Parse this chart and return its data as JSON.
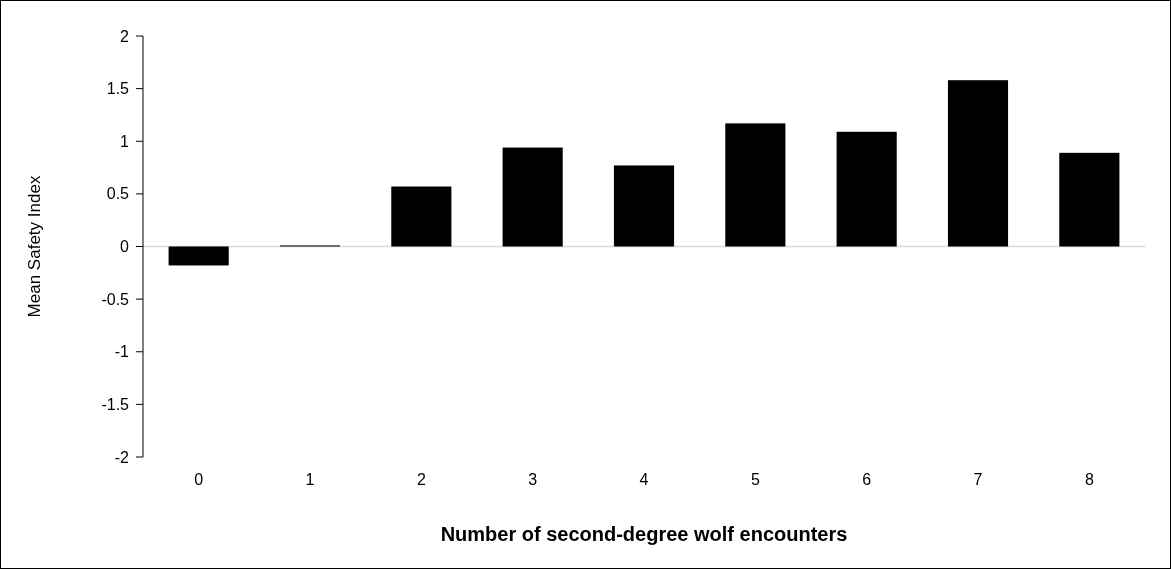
{
  "chart_data": {
    "type": "bar",
    "xlabel": "Number of second-degree wolf encounters",
    "ylabel": "Mean Safety Index",
    "categories": [
      "0",
      "1",
      "2",
      "3",
      "4",
      "5",
      "6",
      "7",
      "8"
    ],
    "values": [
      -0.18,
      0.01,
      0.57,
      0.94,
      0.77,
      1.17,
      1.09,
      1.58,
      0.89
    ],
    "color": "#000000",
    "ylim": [
      -2,
      2
    ],
    "yticks": [
      -2,
      -1.5,
      -1,
      -0.5,
      0,
      0.5,
      1,
      1.5,
      2
    ]
  }
}
